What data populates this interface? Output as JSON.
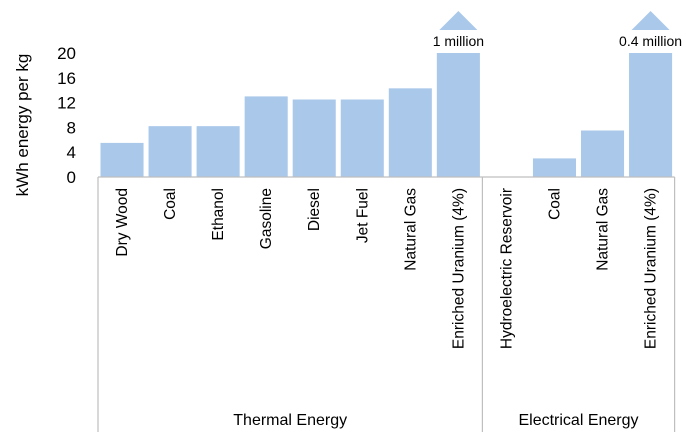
{
  "chart_data": {
    "type": "bar",
    "ylabel": "kWh energy per kg",
    "ylim": [
      0,
      20
    ],
    "yticks": [
      0,
      4,
      8,
      12,
      16,
      20
    ],
    "grid": false,
    "bar_color": "#a9c8ea",
    "groups": [
      {
        "name": "Thermal Energy",
        "categories": [
          "Dry Wood",
          "Coal",
          "Ethanol",
          "Gasoline",
          "Diesel",
          "Jet Fuel",
          "Natural Gas",
          "Enriched Uranium (4%)"
        ],
        "values": [
          5.5,
          8.2,
          8.2,
          13,
          12.5,
          12.5,
          14.3,
          20
        ]
      },
      {
        "name": "Electrical Energy",
        "categories": [
          "Hydroelectric Reservoir",
          "Coal",
          "Natural Gas",
          "Enriched Uranium (4%)"
        ],
        "values": [
          0,
          3,
          7.5,
          20
        ]
      }
    ],
    "annotations": [
      {
        "group": 0,
        "index": 7,
        "text": "1 million",
        "arrow": "up"
      },
      {
        "group": 1,
        "index": 3,
        "text": "0.4 million",
        "arrow": "up"
      }
    ]
  }
}
